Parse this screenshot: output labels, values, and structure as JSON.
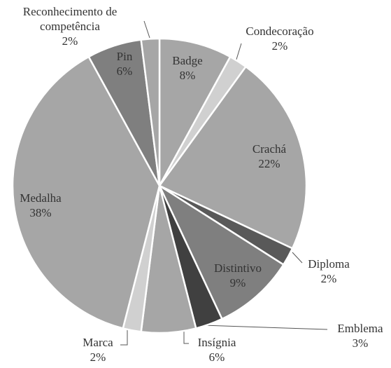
{
  "chart_data": {
    "type": "pie",
    "categories": [
      "Badge",
      "Condecoração",
      "Crachá",
      "Diploma",
      "Distintivo",
      "Emblema",
      "Insígnia",
      "Marca",
      "Medalha",
      "Pin",
      "Reconhecimento de competência"
    ],
    "values": [
      8,
      2,
      22,
      2,
      9,
      3,
      6,
      2,
      38,
      6,
      2
    ],
    "value_labels": [
      "8%",
      "2%",
      "22%",
      "2%",
      "9%",
      "3%",
      "6%",
      "2%",
      "38%",
      "6%",
      "2%"
    ],
    "colors": [
      "#a6a6a6",
      "#d0d0d0",
      "#a6a6a6",
      "#595959",
      "#7f7f7f",
      "#404040",
      "#a6a6a6",
      "#d0d0d0",
      "#a6a6a6",
      "#7f7f7f",
      "#a6a6a6"
    ]
  }
}
